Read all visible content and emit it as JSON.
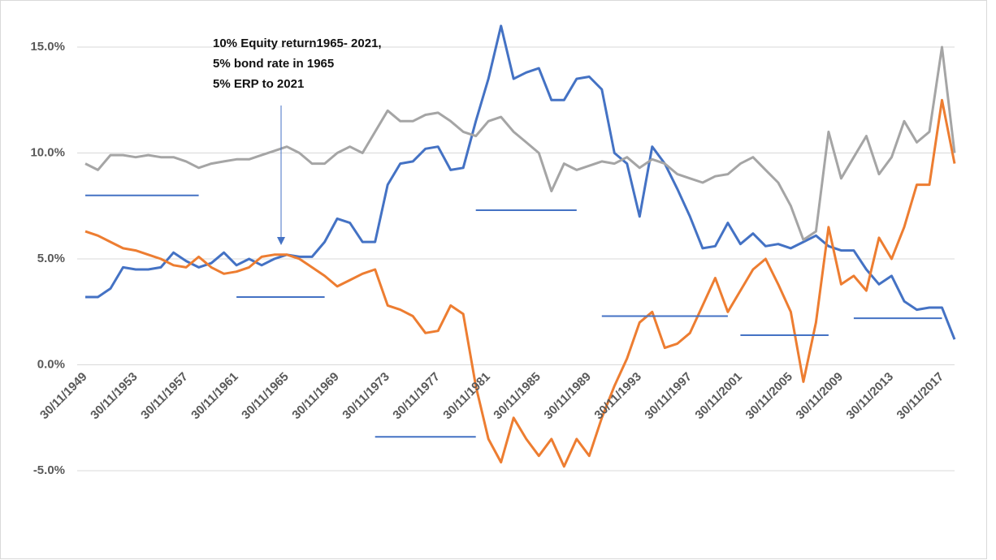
{
  "chart_data": {
    "type": "line",
    "annotation": [
      "10% Equity return1965-  2021,",
      "5% bond rate in 1965",
      "5% ERP to 2021"
    ],
    "categories": [
      "30/11/1949",
      null,
      null,
      null,
      "30/11/1953",
      null,
      null,
      null,
      "30/11/1957",
      null,
      null,
      null,
      "30/11/1961",
      null,
      null,
      null,
      "30/11/1965",
      null,
      null,
      null,
      "30/11/1969",
      null,
      null,
      null,
      "30/11/1973",
      null,
      null,
      null,
      "30/11/1977",
      null,
      null,
      null,
      "30/11/1981",
      null,
      null,
      null,
      "30/11/1985",
      null,
      null,
      null,
      "30/11/1989",
      null,
      null,
      null,
      "30/11/1993",
      null,
      null,
      null,
      "30/11/1997",
      null,
      null,
      null,
      "30/11/2001",
      null,
      null,
      null,
      "30/11/2005",
      null,
      null,
      null,
      "30/11/2009",
      null,
      null,
      null,
      "30/11/2013",
      null,
      null,
      null,
      "30/11/2017",
      null
    ],
    "ylim": [
      -5,
      17
    ],
    "yticks": [
      {
        "value": -5,
        "label": "-5.0%"
      },
      {
        "value": 0,
        "label": "0.0%"
      },
      {
        "value": 5,
        "label": "5.0%"
      },
      {
        "value": 10,
        "label": "10.0%"
      },
      {
        "value": 15,
        "label": "15.0%"
      }
    ],
    "grid": true,
    "series": [
      {
        "color": "#4472c4",
        "values": [
          3.2,
          3.2,
          3.6,
          4.6,
          4.5,
          4.5,
          4.6,
          5.3,
          4.9,
          4.6,
          4.8,
          5.3,
          4.7,
          5.0,
          4.7,
          5.0,
          5.2,
          5.1,
          5.1,
          5.8,
          6.9,
          6.7,
          5.8,
          5.8,
          8.5,
          9.5,
          9.6,
          10.2,
          10.3,
          9.2,
          9.3,
          11.5,
          13.5,
          16.0,
          13.5,
          13.8,
          14.0,
          12.5,
          12.5,
          13.5,
          13.6,
          13.0,
          10.0,
          9.5,
          7.0,
          10.3,
          9.5,
          8.3,
          7.0,
          5.5,
          5.6,
          6.7,
          5.7,
          6.2,
          5.6,
          5.7,
          5.5,
          5.8,
          6.1,
          5.6,
          5.4,
          5.4,
          4.5,
          3.8,
          4.2,
          3.0,
          2.6,
          2.7,
          2.7,
          1.2
        ]
      },
      {
        "color": "#ed7d31",
        "values": [
          6.3,
          6.1,
          5.8,
          5.5,
          5.4,
          5.2,
          5.0,
          4.7,
          4.6,
          5.1,
          4.6,
          4.3,
          4.4,
          4.6,
          5.1,
          5.2,
          5.2,
          5.0,
          4.6,
          4.2,
          3.7,
          4.0,
          4.3,
          4.5,
          2.8,
          2.6,
          2.3,
          1.5,
          1.6,
          2.8,
          2.4,
          -1.0,
          -3.5,
          -4.6,
          -2.5,
          -3.5,
          -4.3,
          -3.5,
          -4.8,
          -3.5,
          -4.3,
          -2.5,
          -1.0,
          0.3,
          2.0,
          2.5,
          0.8,
          1.0,
          1.5,
          2.8,
          4.1,
          2.5,
          3.5,
          4.5,
          5.0,
          3.8,
          2.5,
          -0.8,
          2.0,
          6.5,
          3.8,
          4.2,
          3.5,
          6.0,
          5.0,
          6.5,
          8.5,
          8.5,
          12.5,
          9.5
        ]
      },
      {
        "color": "#a5a5a5",
        "values": [
          9.5,
          9.2,
          9.9,
          9.9,
          9.8,
          9.9,
          9.8,
          9.8,
          9.6,
          9.3,
          9.5,
          9.6,
          9.7,
          9.7,
          9.9,
          10.1,
          10.3,
          10.0,
          9.5,
          9.5,
          10.0,
          10.3,
          10.0,
          11.0,
          12.0,
          11.5,
          11.5,
          11.8,
          11.9,
          11.5,
          11.0,
          10.8,
          11.5,
          11.7,
          11.0,
          10.5,
          10.0,
          8.2,
          9.5,
          9.2,
          9.4,
          9.6,
          9.5,
          9.8,
          9.3,
          9.7,
          9.5,
          9.0,
          8.8,
          8.6,
          8.9,
          9.0,
          9.5,
          9.8,
          9.2,
          8.6,
          7.5,
          5.9,
          6.3,
          11.0,
          8.8,
          9.8,
          10.8,
          9.0,
          9.8,
          11.5,
          10.5,
          11.0,
          15.0,
          10.0
        ]
      },
      {
        "color": "#4472c4",
        "values": [
          8.0,
          8.0,
          8.0,
          8.0,
          8.0,
          8.0,
          8.0,
          8.0,
          8.0,
          8.0,
          null,
          null,
          null,
          null,
          null,
          null,
          null,
          null,
          null,
          null,
          null,
          null,
          null,
          -3.4,
          -3.4,
          -3.4,
          -3.4,
          -3.4,
          -3.4,
          -3.4,
          -3.4,
          -3.4,
          null,
          null,
          null,
          null,
          null,
          null,
          null,
          null,
          null,
          2.3,
          2.3,
          2.3,
          2.3,
          2.3,
          2.3,
          2.3,
          2.3,
          2.3,
          2.3,
          2.3,
          null,
          null,
          null,
          null,
          null,
          null,
          null,
          null,
          null,
          2.2,
          2.2,
          2.2,
          2.2,
          2.2,
          2.2,
          2.2,
          2.2,
          null
        ]
      },
      {
        "color": "#4472c4",
        "values": [
          null,
          null,
          null,
          null,
          null,
          null,
          null,
          null,
          null,
          null,
          null,
          null,
          3.2,
          3.2,
          3.2,
          3.2,
          3.2,
          3.2,
          3.2,
          3.2,
          null,
          null,
          null,
          null,
          null,
          null,
          null,
          null,
          null,
          null,
          null,
          7.3,
          7.3,
          7.3,
          7.3,
          7.3,
          7.3,
          7.3,
          7.3,
          7.3,
          null,
          null,
          null,
          null,
          null,
          null,
          null,
          null,
          null,
          null,
          null,
          null,
          1.4,
          1.4,
          1.4,
          1.4,
          1.4,
          1.4,
          1.4,
          1.4,
          null,
          null,
          null,
          null,
          null,
          null,
          null,
          null,
          null,
          null
        ]
      }
    ]
  }
}
